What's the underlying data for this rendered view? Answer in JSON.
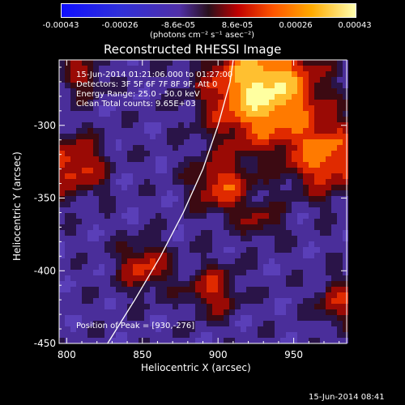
{
  "colorbar": {
    "ticks": [
      "-0.00043",
      "-0.00026",
      "-8.6e-05",
      "8.6e-05",
      "0.00026",
      "0.00043"
    ],
    "unit": "(photons cm⁻² s⁻¹ asec⁻²)"
  },
  "title": "Reconstructed RHESSI Image",
  "overlay": {
    "line1": "15-Jun-2014 01:21:06.000 to 01:27:00",
    "line2": "Detectors: 3F 5F 6F 7F 8F 9F, Att 0",
    "line3": "Energy Range: 25.0 - 50.0 keV",
    "line4": "Clean     Total counts: 9.65E+03",
    "peak": "Position of Peak = [930,-276]"
  },
  "chart_data": {
    "type": "heatmap",
    "title": "Reconstructed RHESSI Image",
    "xlabel": "Heliocentric X (arcsec)",
    "ylabel": "Heliocentric Y (arcsec)",
    "xlim": [
      795,
      985
    ],
    "ylim": [
      -450,
      -255
    ],
    "xticks": [
      "800",
      "850",
      "900",
      "950"
    ],
    "yticks": [
      "-300",
      "-350",
      "-400",
      "-450"
    ],
    "colorscale_range": [
      -0.00043,
      0.00043
    ],
    "peak": [
      930,
      -276
    ],
    "limb_curve": [
      [
        827,
        -450
      ],
      [
        845,
        -420
      ],
      [
        862,
        -390
      ],
      [
        877,
        -360
      ],
      [
        890,
        -330
      ],
      [
        900,
        -300
      ],
      [
        908,
        -270
      ],
      [
        910,
        -255
      ]
    ]
  },
  "footer": {
    "timestamp": "15-Jun-2014 08:41"
  }
}
